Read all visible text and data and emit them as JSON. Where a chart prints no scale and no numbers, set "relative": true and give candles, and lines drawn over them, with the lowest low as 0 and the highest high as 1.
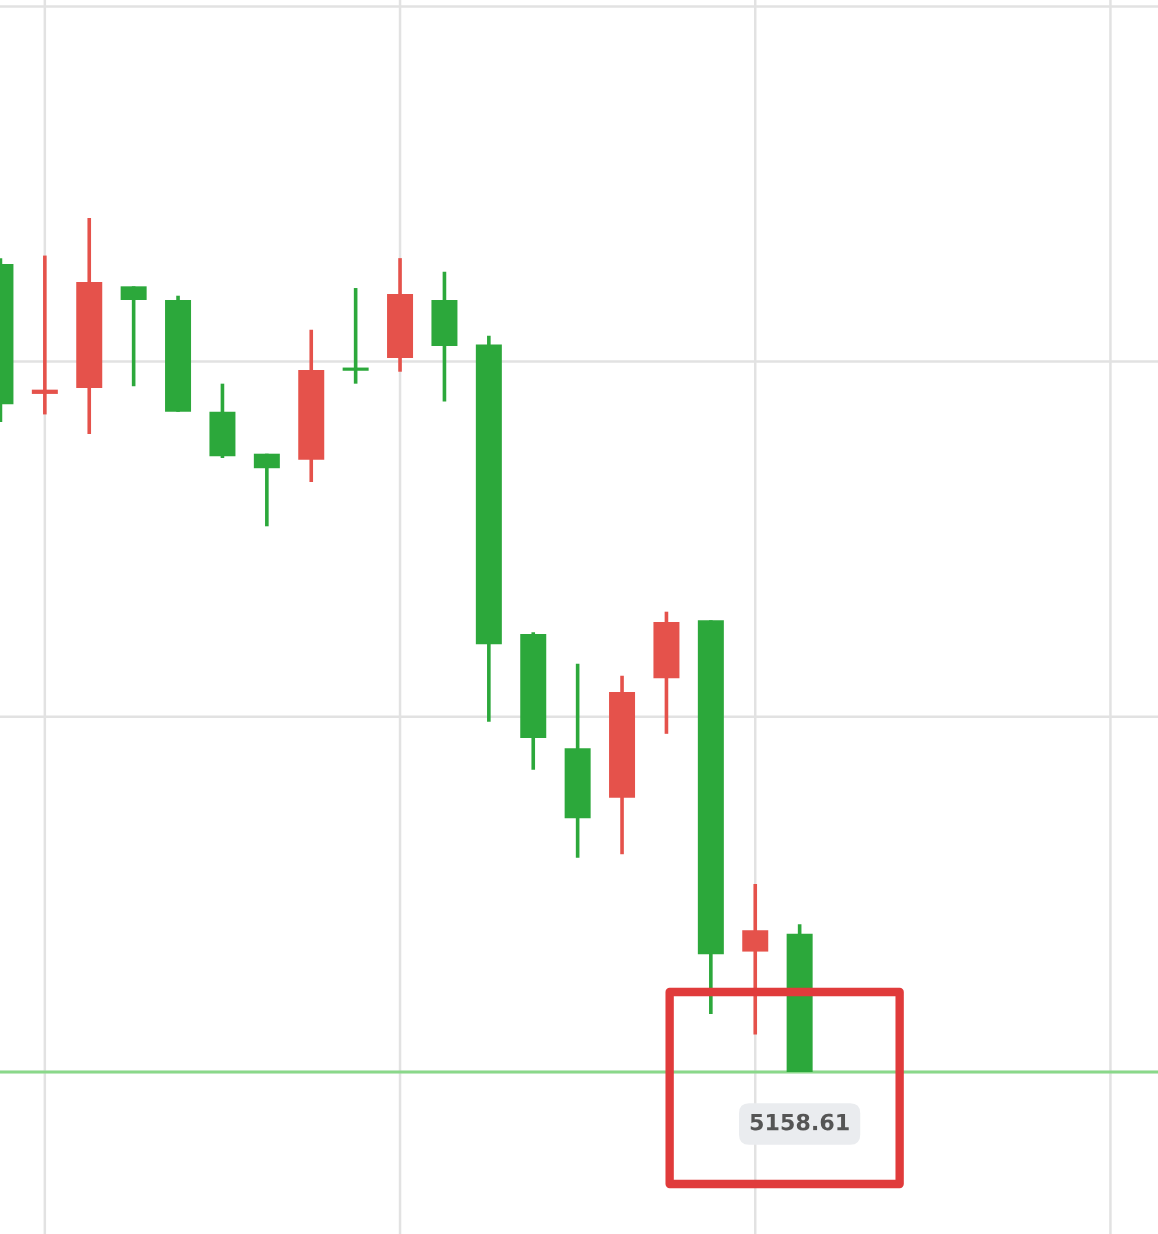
{
  "chart_data": {
    "type": "candlestick",
    "relative": true,
    "categories": [
      null,
      null,
      null,
      null,
      null,
      null,
      null,
      null,
      null,
      null,
      null,
      null,
      null,
      null,
      null,
      null,
      null,
      null,
      null
    ],
    "ohlc": [
      [
        0.946,
        0.953,
        0.761,
        0.782
      ],
      [
        0.794,
        0.956,
        0.77,
        0.799
      ],
      [
        0.801,
        1.0,
        0.747,
        0.925
      ],
      [
        0.92,
        0.92,
        0.803,
        0.904
      ],
      [
        0.904,
        0.909,
        0.773,
        0.773
      ],
      [
        0.773,
        0.806,
        0.719,
        0.721
      ],
      [
        0.724,
        0.724,
        0.639,
        0.707
      ],
      [
        0.717,
        0.869,
        0.691,
        0.822
      ],
      [
        0.824,
        0.918,
        0.806,
        0.822
      ],
      [
        0.836,
        0.953,
        0.82,
        0.911
      ],
      [
        0.904,
        0.937,
        0.785,
        0.85
      ],
      [
        0.852,
        0.862,
        0.41,
        0.501
      ],
      [
        0.513,
        0.515,
        0.354,
        0.391
      ],
      [
        0.379,
        0.478,
        0.251,
        0.297
      ],
      [
        0.321,
        0.464,
        0.255,
        0.445
      ],
      [
        0.461,
        0.539,
        0.396,
        0.527
      ],
      [
        0.529,
        0.529,
        0.068,
        0.138
      ],
      [
        0.141,
        0.22,
        0.044,
        0.166
      ],
      [
        0.162,
        0.173,
        0.0,
        0.0
      ]
    ],
    "colors": [
      "#2ca83b",
      "#e5524b",
      "#e5524b",
      "#2ca83b",
      "#2ca83b",
      "#2ca83b",
      "#2ca83b",
      "#e5524b",
      "#2ca83b",
      "#e5524b",
      "#2ca83b",
      "#2ca83b",
      "#2ca83b",
      "#2ca83b",
      "#e5524b",
      "#e5524b",
      "#2ca83b",
      "#e5524b",
      "#2ca83b"
    ],
    "ref_lines": [
      {
        "axis": "y",
        "value": 0,
        "color": "#8ad88a"
      }
    ],
    "annotations": [
      "5158.61"
    ],
    "grid": true
  }
}
